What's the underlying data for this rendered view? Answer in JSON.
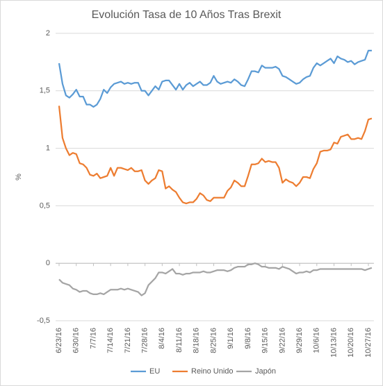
{
  "chart_data": {
    "type": "line",
    "title": "Evolución Tasa de 10 Años Tras Brexit",
    "y_label": "%",
    "categories": [
      "6/23/16",
      null,
      null,
      null,
      null,
      "6/30/16",
      null,
      null,
      null,
      null,
      "7/7/16",
      null,
      null,
      null,
      null,
      "7/14/16",
      null,
      null,
      null,
      null,
      "7/21/16",
      null,
      null,
      null,
      null,
      "7/28/16",
      null,
      null,
      null,
      null,
      "8/4/16",
      null,
      null,
      null,
      null,
      "8/11/16",
      null,
      null,
      null,
      null,
      "8/18/16",
      null,
      null,
      null,
      null,
      "8/25/16",
      null,
      null,
      null,
      null,
      "9/1/16",
      null,
      null,
      null,
      null,
      "9/8/16",
      null,
      null,
      null,
      null,
      "9/15/16",
      null,
      null,
      null,
      null,
      "9/22/16",
      null,
      null,
      null,
      null,
      "9/29/16",
      null,
      null,
      null,
      null,
      "10/6/16",
      null,
      null,
      null,
      null,
      "10/13/16",
      null,
      null,
      null,
      null,
      "10/20/16",
      null,
      null,
      null,
      null,
      "10/27/16",
      null
    ],
    "series": [
      {
        "name": "EU",
        "color": "#5b9bd5",
        "values": [
          1.74,
          1.56,
          1.46,
          1.44,
          1.47,
          1.51,
          1.45,
          1.45,
          1.38,
          1.38,
          1.36,
          1.38,
          1.43,
          1.51,
          1.48,
          1.53,
          1.56,
          1.57,
          1.58,
          1.56,
          1.57,
          1.56,
          1.57,
          1.57,
          1.5,
          1.5,
          1.46,
          1.5,
          1.54,
          1.51,
          1.58,
          1.59,
          1.59,
          1.55,
          1.51,
          1.56,
          1.51,
          1.55,
          1.57,
          1.54,
          1.56,
          1.58,
          1.55,
          1.55,
          1.57,
          1.63,
          1.58,
          1.56,
          1.57,
          1.58,
          1.57,
          1.6,
          1.58,
          1.55,
          1.54,
          1.6,
          1.67,
          1.67,
          1.66,
          1.72,
          1.7,
          1.7,
          1.7,
          1.71,
          1.69,
          1.63,
          1.62,
          1.6,
          1.58,
          1.56,
          1.57,
          1.6,
          1.62,
          1.63,
          1.7,
          1.74,
          1.72,
          1.74,
          1.76,
          1.78,
          1.74,
          1.8,
          1.78,
          1.77,
          1.75,
          1.76,
          1.73,
          1.75,
          1.76,
          1.77,
          1.85,
          1.85
        ]
      },
      {
        "name": "Reino Unido",
        "color": "#ed7d31",
        "values": [
          1.37,
          1.09,
          1.0,
          0.94,
          0.96,
          0.95,
          0.87,
          0.86,
          0.83,
          0.77,
          0.76,
          0.78,
          0.74,
          0.75,
          0.76,
          0.83,
          0.76,
          0.83,
          0.83,
          0.82,
          0.81,
          0.83,
          0.8,
          0.8,
          0.81,
          0.72,
          0.69,
          0.72,
          0.74,
          0.81,
          0.8,
          0.65,
          0.67,
          0.64,
          0.62,
          0.57,
          0.53,
          0.52,
          0.53,
          0.53,
          0.56,
          0.61,
          0.59,
          0.55,
          0.54,
          0.57,
          0.57,
          0.57,
          0.57,
          0.63,
          0.66,
          0.72,
          0.7,
          0.67,
          0.67,
          0.76,
          0.86,
          0.86,
          0.87,
          0.91,
          0.88,
          0.89,
          0.88,
          0.88,
          0.83,
          0.7,
          0.73,
          0.71,
          0.7,
          0.67,
          0.7,
          0.75,
          0.75,
          0.74,
          0.82,
          0.87,
          0.97,
          0.98,
          0.98,
          0.99,
          1.05,
          1.04,
          1.1,
          1.11,
          1.12,
          1.08,
          1.08,
          1.09,
          1.08,
          1.15,
          1.25,
          1.26
        ]
      },
      {
        "name": "Japón",
        "color": "#a5a5a5",
        "values": [
          -0.14,
          -0.17,
          -0.18,
          -0.19,
          -0.22,
          -0.23,
          -0.25,
          -0.24,
          -0.24,
          -0.26,
          -0.27,
          -0.27,
          -0.26,
          -0.27,
          -0.25,
          -0.23,
          -0.23,
          -0.23,
          -0.22,
          -0.23,
          -0.22,
          -0.23,
          -0.24,
          -0.25,
          -0.28,
          -0.26,
          -0.19,
          -0.16,
          -0.13,
          -0.08,
          -0.08,
          -0.09,
          -0.07,
          -0.05,
          -0.09,
          -0.09,
          -0.1,
          -0.09,
          -0.09,
          -0.08,
          -0.08,
          -0.08,
          -0.07,
          -0.08,
          -0.08,
          -0.07,
          -0.06,
          -0.06,
          -0.06,
          -0.07,
          -0.06,
          -0.04,
          -0.03,
          -0.03,
          -0.03,
          -0.01,
          -0.01,
          0.0,
          -0.01,
          -0.03,
          -0.03,
          -0.04,
          -0.04,
          -0.04,
          -0.05,
          -0.03,
          -0.04,
          -0.05,
          -0.07,
          -0.09,
          -0.08,
          -0.08,
          -0.07,
          -0.08,
          -0.06,
          -0.06,
          -0.05,
          -0.05,
          -0.05,
          -0.05,
          -0.05,
          -0.05,
          -0.05,
          -0.05,
          -0.05,
          -0.05,
          -0.05,
          -0.05,
          -0.05,
          -0.06,
          -0.05,
          -0.04
        ]
      }
    ],
    "ylim": [
      -0.5,
      2
    ],
    "yticks": [
      {
        "value": -0.5,
        "label": "-0,5"
      },
      0,
      {
        "value": 0.5,
        "label": "0,5"
      },
      1,
      {
        "value": 1.5,
        "label": "1,5"
      },
      2
    ],
    "grid": true,
    "legend": "bottom"
  }
}
